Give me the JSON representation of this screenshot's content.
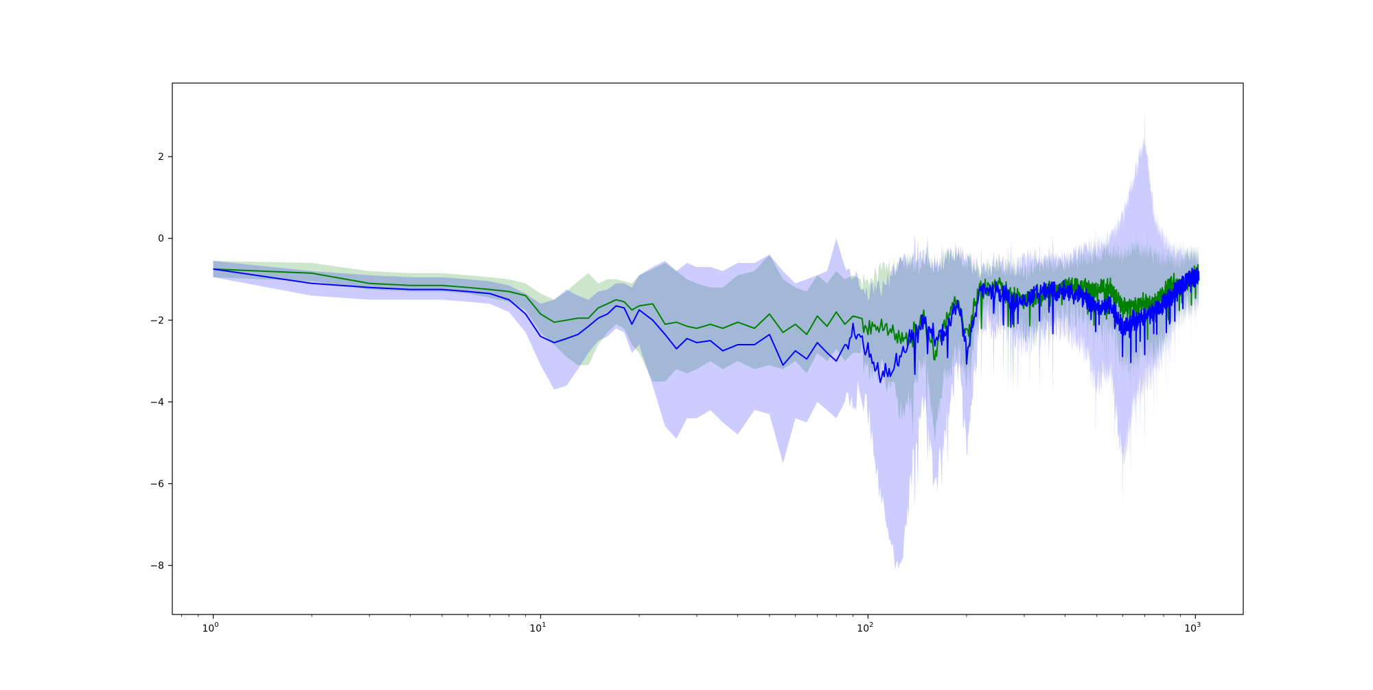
{
  "chart_data": {
    "type": "line",
    "title": "",
    "xlabel": "",
    "ylabel": "",
    "xscale": "log",
    "xlim": [
      0.75,
      1400
    ],
    "ylim": [
      -9.2,
      3.8
    ],
    "grid": false,
    "legend": "none",
    "x_ticks": [
      {
        "value": 1,
        "base": "10",
        "exp": "0"
      },
      {
        "value": 10,
        "base": "10",
        "exp": "1"
      },
      {
        "value": 100,
        "base": "10",
        "exp": "2"
      },
      {
        "value": 1000,
        "base": "10",
        "exp": "3"
      }
    ],
    "y_ticks": [
      {
        "value": 2,
        "label": "2"
      },
      {
        "value": 0,
        "label": "0"
      },
      {
        "value": -2,
        "label": "−2"
      },
      {
        "value": -4,
        "label": "−4"
      },
      {
        "value": -6,
        "label": "−6"
      },
      {
        "value": -8,
        "label": "−8"
      }
    ],
    "series": [
      {
        "color": "#008000",
        "band_color": "#008000",
        "band_opacity": 0.2,
        "noise_from_x": 100,
        "x": [
          1,
          2,
          3,
          4,
          5,
          6,
          7,
          8,
          9,
          10,
          11,
          12,
          13,
          14,
          15,
          16,
          17,
          18,
          19,
          20,
          22,
          24,
          26,
          28,
          30,
          33,
          36,
          40,
          45,
          50,
          55,
          60,
          65,
          70,
          75,
          80,
          85,
          90,
          95,
          100,
          110,
          120,
          130,
          140,
          150,
          160,
          170,
          180,
          190,
          200,
          220,
          250,
          280,
          300,
          350,
          400,
          450,
          500,
          550,
          600,
          650,
          700,
          750,
          800,
          850,
          900,
          950,
          1000,
          1024
        ],
        "y": [
          -0.75,
          -0.85,
          -1.1,
          -1.15,
          -1.15,
          -1.2,
          -1.25,
          -1.3,
          -1.4,
          -1.85,
          -2.05,
          -2.0,
          -1.95,
          -1.95,
          -1.7,
          -1.6,
          -1.5,
          -1.55,
          -1.75,
          -1.65,
          -1.6,
          -2.1,
          -2.05,
          -2.15,
          -2.2,
          -2.1,
          -2.2,
          -2.05,
          -2.2,
          -1.85,
          -2.3,
          -2.1,
          -2.35,
          -1.9,
          -2.15,
          -1.8,
          -2.1,
          -1.9,
          -1.95,
          -2.2,
          -2.1,
          -2.4,
          -2.5,
          -2.2,
          -1.9,
          -2.9,
          -2.1,
          -1.7,
          -1.6,
          -2.4,
          -1.2,
          -1.2,
          -1.4,
          -1.5,
          -1.3,
          -1.2,
          -1.2,
          -1.3,
          -1.2,
          -1.7,
          -1.7,
          -1.6,
          -1.6,
          -1.4,
          -1.1,
          -1.2,
          -1.0,
          -0.9,
          -0.9
        ],
        "lower": [
          -0.95,
          -1.05,
          -1.25,
          -1.3,
          -1.3,
          -1.35,
          -1.45,
          -1.55,
          -1.75,
          -2.3,
          -2.6,
          -2.9,
          -3.1,
          -3.1,
          -2.6,
          -2.3,
          -2.1,
          -2.2,
          -2.6,
          -2.8,
          -3.5,
          -3.5,
          -3.2,
          -3.3,
          -3.2,
          -3.0,
          -3.2,
          -3.0,
          -3.2,
          -3.1,
          -3.2,
          -3.0,
          -3.3,
          -2.8,
          -3.0,
          -2.7,
          -3.0,
          -2.8,
          -2.8,
          -3.2,
          -3.3,
          -3.9,
          -4.3,
          -3.5,
          -3.0,
          -4.8,
          -3.5,
          -3.0,
          -2.8,
          -3.4,
          -1.7,
          -1.8,
          -2.0,
          -2.3,
          -2.0,
          -1.8,
          -1.9,
          -2.2,
          -2.1,
          -3.0,
          -3.0,
          -2.7,
          -2.8,
          -2.4,
          -1.9,
          -1.8,
          -1.6,
          -1.5,
          -1.4
        ],
        "upper": [
          -0.55,
          -0.6,
          -0.8,
          -0.85,
          -0.85,
          -0.9,
          -0.95,
          -1.0,
          -1.1,
          -1.35,
          -1.5,
          -1.3,
          -1.05,
          -0.85,
          -1.1,
          -1.0,
          -1.0,
          -1.05,
          -1.1,
          -0.9,
          -0.75,
          -0.6,
          -0.8,
          -1.0,
          -1.1,
          -1.2,
          -1.2,
          -0.9,
          -0.8,
          -0.4,
          -1.0,
          -1.2,
          -1.3,
          -0.9,
          -1.1,
          -0.8,
          -1.0,
          -0.9,
          -1.0,
          -1.2,
          -0.7,
          -0.7,
          -0.5,
          -0.7,
          -0.6,
          -0.7,
          -0.5,
          -0.3,
          -0.4,
          -0.6,
          -0.7,
          -0.6,
          -0.8,
          -0.8,
          -0.6,
          -0.6,
          -0.5,
          -0.4,
          -0.3,
          -0.4,
          -0.2,
          -0.3,
          -0.4,
          -0.5,
          -0.5,
          -0.6,
          -0.4,
          -0.4,
          -0.4
        ]
      },
      {
        "color": "#0000ff",
        "band_color": "#0000ff",
        "band_opacity": 0.2,
        "noise_from_x": 90,
        "x": [
          1,
          2,
          3,
          4,
          5,
          6,
          7,
          8,
          9,
          10,
          11,
          12,
          13,
          14,
          15,
          16,
          17,
          18,
          19,
          20,
          22,
          24,
          26,
          28,
          30,
          33,
          36,
          40,
          45,
          50,
          55,
          60,
          65,
          70,
          75,
          80,
          85,
          90,
          95,
          100,
          110,
          120,
          130,
          140,
          150,
          160,
          170,
          180,
          190,
          200,
          220,
          250,
          280,
          300,
          350,
          400,
          450,
          500,
          550,
          600,
          650,
          700,
          750,
          800,
          850,
          900,
          950,
          1000,
          1024
        ],
        "y": [
          -0.75,
          -1.1,
          -1.2,
          -1.25,
          -1.25,
          -1.3,
          -1.35,
          -1.5,
          -1.85,
          -2.4,
          -2.55,
          -2.45,
          -2.35,
          -2.15,
          -1.95,
          -1.85,
          -1.65,
          -1.7,
          -2.1,
          -1.75,
          -2.0,
          -2.35,
          -2.7,
          -2.45,
          -2.55,
          -2.5,
          -2.75,
          -2.6,
          -2.6,
          -2.35,
          -3.1,
          -2.75,
          -2.95,
          -2.55,
          -2.8,
          -3.0,
          -2.6,
          -2.3,
          -2.5,
          -2.8,
          -3.3,
          -3.1,
          -2.7,
          -2.2,
          -2.0,
          -2.4,
          -2.3,
          -1.9,
          -1.6,
          -2.8,
          -1.2,
          -1.3,
          -1.5,
          -1.5,
          -1.3,
          -1.3,
          -1.4,
          -1.7,
          -1.6,
          -2.2,
          -2.0,
          -1.9,
          -1.8,
          -1.6,
          -1.4,
          -1.2,
          -1.0,
          -0.9,
          -0.9
        ],
        "lower": [
          -0.95,
          -1.4,
          -1.5,
          -1.5,
          -1.5,
          -1.55,
          -1.6,
          -1.8,
          -2.3,
          -3.1,
          -3.7,
          -3.6,
          -3.2,
          -2.8,
          -2.5,
          -2.4,
          -2.2,
          -2.3,
          -2.8,
          -2.6,
          -3.6,
          -4.6,
          -4.9,
          -4.4,
          -4.4,
          -4.2,
          -4.5,
          -4.8,
          -4.2,
          -4.3,
          -5.5,
          -4.4,
          -4.5,
          -4.0,
          -4.2,
          -4.4,
          -4.0,
          -3.9,
          -3.8,
          -4.3,
          -6.5,
          -8.0,
          -7.3,
          -4.8,
          -4.0,
          -6.2,
          -5.0,
          -3.6,
          -3.2,
          -5.2,
          -2.0,
          -2.1,
          -2.4,
          -2.6,
          -2.3,
          -2.2,
          -2.6,
          -3.5,
          -3.2,
          -5.5,
          -4.0,
          -3.5,
          -3.2,
          -2.7,
          -2.2,
          -1.8,
          -1.6,
          -1.6,
          -1.5
        ],
        "upper": [
          -0.55,
          -0.8,
          -0.9,
          -0.95,
          -0.95,
          -1.0,
          -1.05,
          -1.15,
          -1.35,
          -1.6,
          -1.5,
          -1.25,
          -1.4,
          -1.5,
          -1.3,
          -1.25,
          -1.1,
          -1.1,
          -1.2,
          -0.9,
          -0.7,
          -0.55,
          -0.8,
          -0.6,
          -0.7,
          -0.7,
          -0.8,
          -0.6,
          -0.6,
          -0.4,
          -0.8,
          -1.1,
          -1.0,
          -0.9,
          -0.8,
          0.0,
          -0.7,
          -0.8,
          -1.2,
          -1.3,
          -1.2,
          -0.8,
          -0.5,
          -0.5,
          -0.4,
          -0.6,
          -0.6,
          -0.4,
          -0.3,
          -0.5,
          -0.8,
          -0.6,
          -0.7,
          -0.5,
          -0.5,
          -0.5,
          -0.3,
          -0.2,
          0.0,
          0.5,
          1.5,
          2.5,
          0.5,
          0.0,
          -0.3,
          -0.3,
          -0.4,
          -0.4,
          -0.4
        ]
      }
    ]
  }
}
